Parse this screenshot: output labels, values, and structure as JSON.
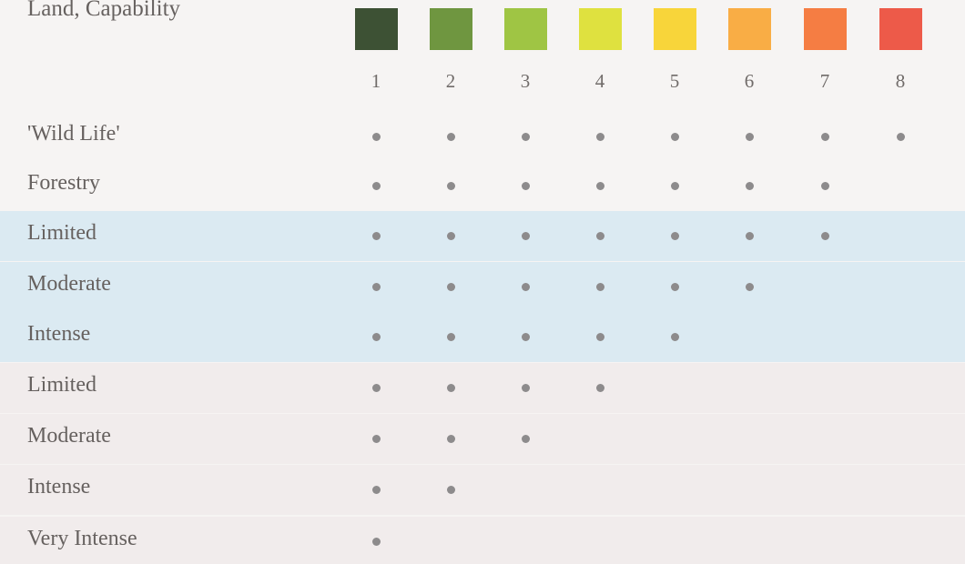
{
  "chart_data": {
    "type": "table",
    "title": "Land, Capability",
    "classes": [
      {
        "label": "1",
        "color": "#3d5134"
      },
      {
        "label": "2",
        "color": "#6f9640"
      },
      {
        "label": "3",
        "color": "#9fc544"
      },
      {
        "label": "4",
        "color": "#dfe13f"
      },
      {
        "label": "5",
        "color": "#f8d53a"
      },
      {
        "label": "6",
        "color": "#f9ad45"
      },
      {
        "label": "7",
        "color": "#f57d43"
      },
      {
        "label": "8",
        "color": "#ed5a49"
      }
    ],
    "rows": [
      {
        "label": "'Wild Life'",
        "max_class": 8,
        "group": "plain"
      },
      {
        "label": "Forestry",
        "max_class": 7,
        "group": "plain"
      },
      {
        "label": "Limited",
        "max_class": 7,
        "group": "blue"
      },
      {
        "label": "Moderate",
        "max_class": 6,
        "group": "blue"
      },
      {
        "label": "Intense",
        "max_class": 5,
        "group": "blue"
      },
      {
        "label": "Limited",
        "max_class": 4,
        "group": "pink"
      },
      {
        "label": "Moderate",
        "max_class": 3,
        "group": "pink"
      },
      {
        "label": "Intense",
        "max_class": 2,
        "group": "pink"
      },
      {
        "label": "Very Intense",
        "max_class": 1,
        "group": "pink"
      }
    ],
    "dot_color": "#8d8b8c",
    "band_colors": {
      "blue": "#dbeaf2",
      "pink": "#f1ecec",
      "plain": "#f6f4f3"
    }
  }
}
